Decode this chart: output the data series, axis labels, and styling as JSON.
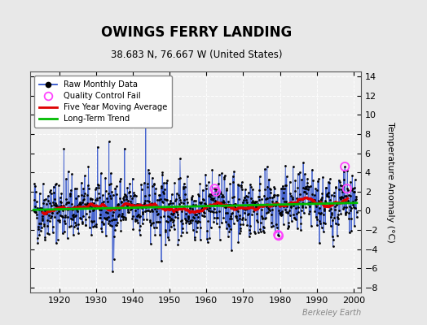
{
  "title": "OWINGS FERRY LANDING",
  "subtitle": "38.683 N, 76.667 W (United States)",
  "ylabel": "Temperature Anomaly (°C)",
  "watermark": "Berkeley Earth",
  "xlim": [
    1912,
    2002
  ],
  "ylim": [
    -8.5,
    14.5
  ],
  "yticks": [
    -8,
    -6,
    -4,
    -2,
    0,
    2,
    4,
    6,
    8,
    10,
    12,
    14
  ],
  "xticks": [
    1920,
    1930,
    1940,
    1950,
    1960,
    1970,
    1980,
    1990,
    2000
  ],
  "start_year": 1913,
  "end_year": 2001,
  "figure_bg": "#e8e8e8",
  "plot_bg": "#f0f0f0",
  "raw_color": "#3355cc",
  "dot_color": "#000000",
  "qc_color": "#ff44ff",
  "moving_avg_color": "#dd0000",
  "trend_color": "#00bb00",
  "moving_avg_window": 60,
  "seed": 42
}
